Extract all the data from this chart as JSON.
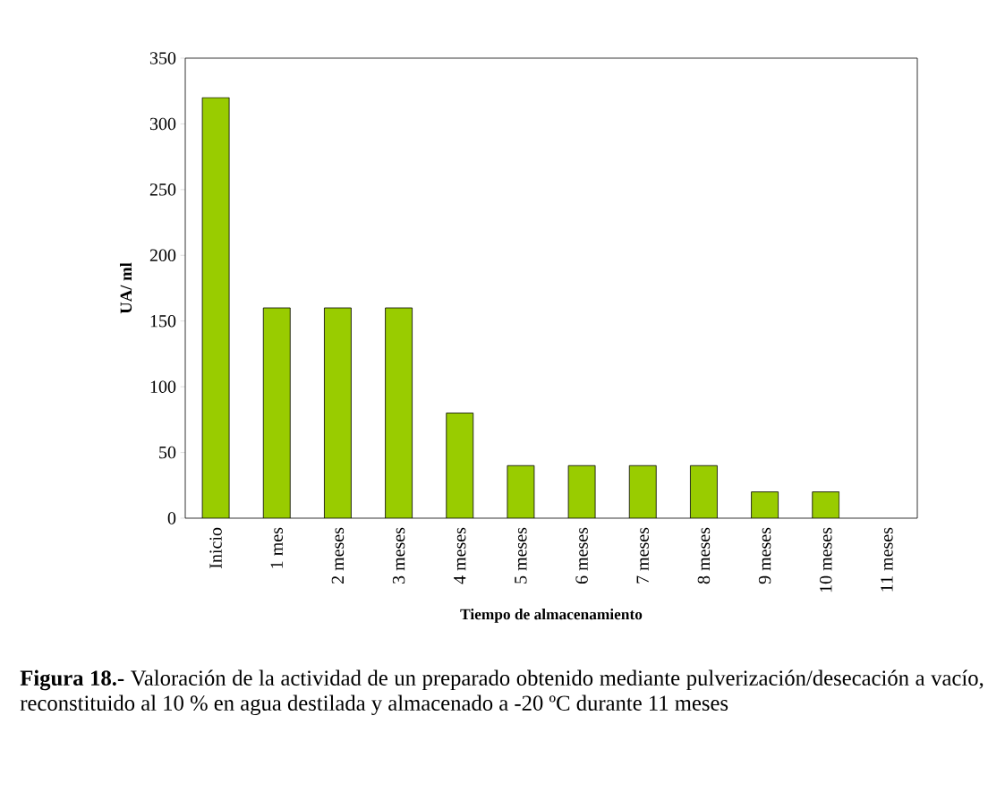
{
  "chart_data": {
    "type": "bar",
    "xlabel": "Tiempo de almacenamiento",
    "ylabel": "UA/ ml",
    "categories": [
      "Inicio",
      "1 mes",
      "2 meses",
      "3 meses",
      "4 meses",
      "5 meses",
      "6 meses",
      "7 meses",
      "8 meses",
      "9 meses",
      "10 meses",
      "11 meses"
    ],
    "values": [
      320,
      160,
      160,
      160,
      80,
      40,
      40,
      40,
      40,
      20,
      20,
      0
    ],
    "color": "#99cc00",
    "ylim": [
      0,
      350
    ],
    "yticks": [
      0,
      50,
      100,
      150,
      200,
      250,
      300,
      350
    ],
    "grid": false,
    "annotations": [
      "**Figura 18.-** Valoración de la actividad de un preparado obtenido mediante pulverización/desecación a vacío, reconstituido al 10 % en agua destilada y almacenado a -20 ºC durante 11 meses"
    ]
  }
}
